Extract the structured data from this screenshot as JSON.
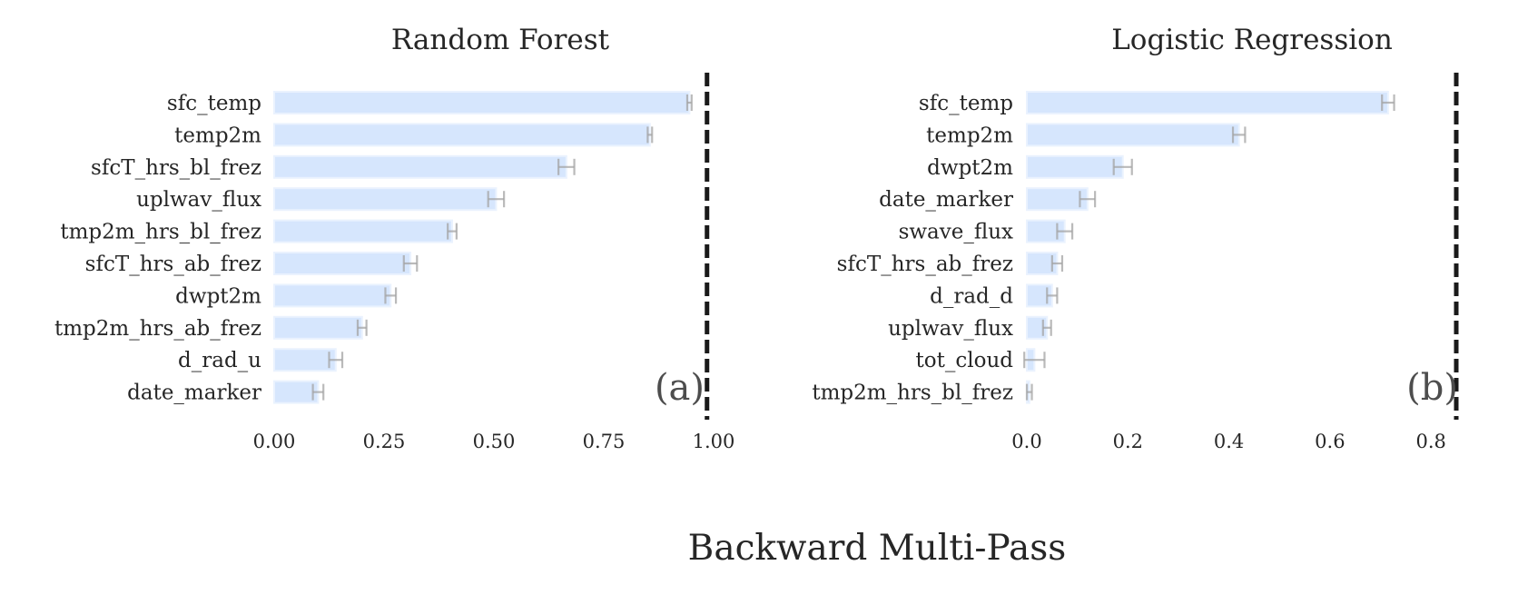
{
  "suptitle": "Backward Multi-Pass",
  "colors": {
    "bar": "#d6e6fd",
    "bar_edge": "#eaf2fe",
    "error": "#a3a3a3",
    "ref_line": "#1a1a1a",
    "text": "#262626",
    "panel_label": "#4d4d4d"
  },
  "chart_data": [
    {
      "type": "bar",
      "orientation": "horizontal",
      "title": "Random Forest",
      "panel_label": "(a)",
      "xlim": [
        0,
        1.0
      ],
      "xticks": [
        "0.00",
        "0.25",
        "0.50",
        "0.75",
        "1.00"
      ],
      "xtick_values": [
        0,
        0.25,
        0.5,
        0.75,
        1.0
      ],
      "reference_line": 0.985,
      "grid": false,
      "categories": [
        "sfc_temp",
        "temp2m",
        "sfcT_hrs_bl_frez",
        "uplwav_flux",
        "tmp2m_hrs_bl_frez",
        "sfcT_hrs_ab_frez",
        "dwpt2m",
        "tmp2m_hrs_ab_frez",
        "d_rad_u",
        "date_marker"
      ],
      "values": [
        0.945,
        0.855,
        0.665,
        0.505,
        0.405,
        0.31,
        0.265,
        0.2,
        0.14,
        0.1
      ],
      "errors": [
        0.005,
        0.005,
        0.018,
        0.018,
        0.01,
        0.015,
        0.012,
        0.01,
        0.015,
        0.012
      ]
    },
    {
      "type": "bar",
      "orientation": "horizontal",
      "title": "Logistic Regression",
      "panel_label": "(b)",
      "xlim": [
        0,
        0.85
      ],
      "xticks": [
        "0.0",
        "0.2",
        "0.4",
        "0.6",
        "0.8"
      ],
      "xtick_values": [
        0,
        0.2,
        0.4,
        0.6,
        0.8
      ],
      "reference_line": 0.85,
      "grid": false,
      "categories": [
        "sfc_temp",
        "temp2m",
        "dwpt2m",
        "date_marker",
        "swave_flux",
        "sfcT_hrs_ab_frez",
        "d_rad_d",
        "uplwav_flux",
        "tot_cloud",
        "tmp2m_hrs_bl_frez"
      ],
      "values": [
        0.715,
        0.42,
        0.19,
        0.12,
        0.075,
        0.06,
        0.05,
        0.04,
        0.015,
        0.005
      ],
      "errors": [
        0.012,
        0.012,
        0.018,
        0.015,
        0.015,
        0.01,
        0.01,
        0.008,
        0.02,
        0.005
      ]
    }
  ]
}
